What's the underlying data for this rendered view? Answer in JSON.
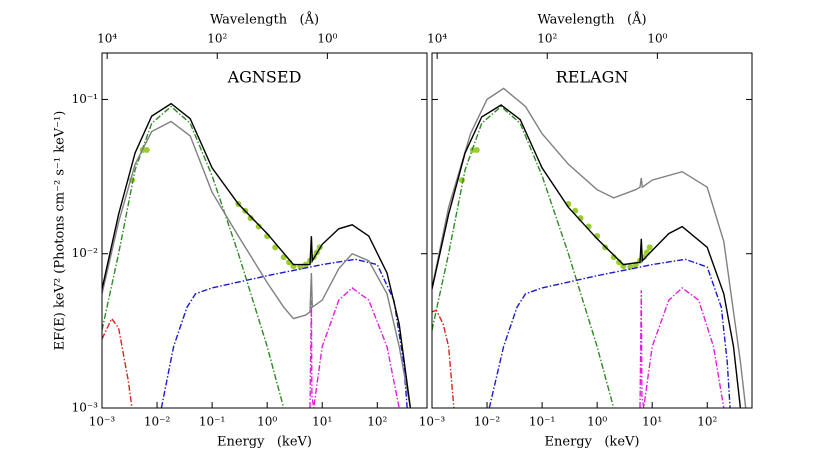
{
  "chart_data": [
    {
      "type": "line",
      "title": "AGNSED",
      "xlabel": "Energy   (keV)",
      "x2label": "Wavelength   (Å)",
      "ylabel": "EF(E)  keV² (Photons cm⁻² s⁻¹ keV⁻¹)",
      "xscale": "log",
      "yscale": "log",
      "xlim": [
        0.001,
        800
      ],
      "ylim": [
        0.001,
        0.2
      ],
      "x2lim": [
        12398,
        0.0155
      ],
      "xticks": [
        {
          "value": 0.001,
          "label": "10⁻³"
        },
        {
          "value": 0.01,
          "label": "10⁻²"
        },
        {
          "value": 0.1,
          "label": "10⁻¹"
        },
        {
          "value": 1,
          "label": "10⁰"
        },
        {
          "value": 10,
          "label": "10¹"
        },
        {
          "value": 100,
          "label": "10²"
        }
      ],
      "x2ticks": [
        {
          "value": 10000,
          "label": "10⁴"
        },
        {
          "value": 100,
          "label": "10²"
        },
        {
          "value": 1,
          "label": "10⁰"
        }
      ],
      "yticks": [
        {
          "value": 0.001,
          "label": "10⁻³"
        },
        {
          "value": 0.01,
          "label": "10⁻²"
        },
        {
          "value": 0.1,
          "label": "10⁻¹"
        }
      ],
      "series": [
        {
          "color": "#9acd32",
          "style": "points",
          "x": [
            0.0035,
            0.0055,
            0.0065,
            0.3,
            0.4,
            0.5,
            0.7,
            1,
            1.4,
            2,
            2.5,
            3,
            4,
            5,
            6,
            7,
            8,
            9
          ],
          "values": [
            0.03,
            0.047,
            0.047,
            0.021,
            0.019,
            0.017,
            0.015,
            0.013,
            0.011,
            0.0095,
            0.0088,
            0.0083,
            0.0082,
            0.0085,
            0.009,
            0.0095,
            0.0102,
            0.011
          ]
        },
        {
          "color": "#2e8b22",
          "style": "dashdot",
          "x": [
            0.001,
            0.002,
            0.004,
            0.008,
            0.018,
            0.04,
            0.1,
            0.3,
            1,
            2
          ],
          "values": [
            0.0032,
            0.01,
            0.035,
            0.07,
            0.09,
            0.07,
            0.032,
            0.01,
            0.0025,
            0.001
          ]
        },
        {
          "color": "#e02020",
          "style": "dashdot",
          "x": [
            0.001,
            0.0015,
            0.002,
            0.003,
            0.0035
          ],
          "values": [
            0.0028,
            0.0038,
            0.0033,
            0.0015,
            0.001
          ]
        },
        {
          "color": "#1a1acc",
          "style": "dashdot",
          "x": [
            0.012,
            0.02,
            0.035,
            0.05,
            0.1,
            1,
            10,
            40,
            100,
            200,
            300,
            350
          ],
          "values": [
            0.001,
            0.0025,
            0.0045,
            0.0055,
            0.006,
            0.0072,
            0.0085,
            0.0092,
            0.0085,
            0.005,
            0.002,
            0.001
          ]
        },
        {
          "color": "#e020e0",
          "style": "dashdot",
          "x": [
            6.0,
            6.35,
            6.5,
            7,
            10,
            20,
            35,
            70,
            150,
            250
          ],
          "values": [
            0.001,
            0.005,
            0.0012,
            0.001,
            0.0025,
            0.005,
            0.006,
            0.005,
            0.0025,
            0.001
          ]
        },
        {
          "color": "#808080",
          "style": "solid",
          "x": [
            0.001,
            0.002,
            0.004,
            0.008,
            0.018,
            0.04,
            0.1,
            0.3,
            1,
            2,
            3,
            5,
            6,
            6.35,
            6.6,
            10,
            20,
            35,
            70,
            150,
            250,
            400
          ],
          "values": [
            0.0055,
            0.016,
            0.038,
            0.062,
            0.072,
            0.058,
            0.025,
            0.013,
            0.0065,
            0.0045,
            0.0038,
            0.004,
            0.0042,
            0.0075,
            0.0045,
            0.005,
            0.008,
            0.01,
            0.009,
            0.0055,
            0.0025,
            0.001
          ]
        },
        {
          "color": "#000000",
          "style": "solid",
          "x": [
            0.001,
            0.002,
            0.004,
            0.008,
            0.018,
            0.04,
            0.1,
            0.3,
            1,
            3,
            6,
            6.35,
            6.6,
            10,
            20,
            35,
            70,
            150,
            250,
            400
          ],
          "values": [
            0.0059,
            0.018,
            0.045,
            0.078,
            0.094,
            0.075,
            0.036,
            0.021,
            0.0135,
            0.0085,
            0.0085,
            0.013,
            0.009,
            0.0115,
            0.0145,
            0.0154,
            0.013,
            0.0075,
            0.0035,
            0.001
          ]
        }
      ]
    },
    {
      "type": "line",
      "title": "RELAGN",
      "xlabel": "Energy   (keV)",
      "x2label": "Wavelength   (Å)",
      "xscale": "log",
      "yscale": "log",
      "xlim": [
        0.001,
        650
      ],
      "ylim": [
        0.001,
        0.2
      ],
      "x2lim": [
        12398,
        0.0191
      ],
      "xticks": [
        {
          "value": 0.001,
          "label": "10⁻³"
        },
        {
          "value": 0.01,
          "label": "10⁻²"
        },
        {
          "value": 0.1,
          "label": "10⁻¹"
        },
        {
          "value": 1,
          "label": "10⁰"
        },
        {
          "value": 10,
          "label": "10¹"
        },
        {
          "value": 100,
          "label": "10²"
        }
      ],
      "x2ticks": [
        {
          "value": 10000,
          "label": "10⁴"
        },
        {
          "value": 100,
          "label": "10²"
        },
        {
          "value": 1,
          "label": "10⁰"
        }
      ],
      "yticks": [
        0.001,
        0.01,
        0.1
      ],
      "series": [
        {
          "color": "#9acd32",
          "style": "points",
          "x": [
            0.0035,
            0.0055,
            0.0065,
            0.3,
            0.4,
            0.5,
            0.7,
            1,
            1.4,
            2,
            2.5,
            3,
            4,
            5,
            6,
            7,
            8,
            9
          ],
          "values": [
            0.03,
            0.047,
            0.047,
            0.021,
            0.019,
            0.017,
            0.015,
            0.013,
            0.011,
            0.0095,
            0.0088,
            0.0083,
            0.0082,
            0.0085,
            0.009,
            0.0095,
            0.0102,
            0.011
          ]
        },
        {
          "color": "#2e8b22",
          "style": "dashdot",
          "x": [
            0.001,
            0.002,
            0.004,
            0.008,
            0.018,
            0.04,
            0.1,
            0.3,
            1,
            2
          ],
          "values": [
            0.0032,
            0.01,
            0.035,
            0.07,
            0.09,
            0.07,
            0.032,
            0.01,
            0.0025,
            0.001
          ]
        },
        {
          "color": "#e02020",
          "style": "dashdot",
          "x": [
            0.001,
            0.0012,
            0.0016,
            0.002,
            0.0025
          ],
          "values": [
            0.0042,
            0.0043,
            0.0035,
            0.0025,
            0.001
          ]
        },
        {
          "color": "#1a1acc",
          "style": "dashdot",
          "x": [
            0.011,
            0.02,
            0.035,
            0.05,
            0.1,
            1,
            10,
            40,
            100,
            180,
            230,
            260
          ],
          "values": [
            0.001,
            0.0025,
            0.0045,
            0.0055,
            0.006,
            0.0072,
            0.0085,
            0.0092,
            0.0082,
            0.0045,
            0.002,
            0.001
          ]
        },
        {
          "color": "#e020e0",
          "style": "dashdot",
          "x": [
            6.0,
            6.35,
            6.5,
            7,
            10,
            20,
            35,
            70,
            130,
            200
          ],
          "values": [
            0.001,
            0.0058,
            0.0012,
            0.001,
            0.0025,
            0.005,
            0.006,
            0.005,
            0.0025,
            0.001
          ]
        },
        {
          "color": "#808080",
          "style": "solid",
          "x": [
            0.001,
            0.002,
            0.005,
            0.01,
            0.02,
            0.05,
            0.1,
            0.3,
            1,
            2,
            5,
            6,
            6.35,
            6.6,
            10,
            35,
            100,
            200,
            400,
            500
          ],
          "values": [
            0.006,
            0.02,
            0.06,
            0.1,
            0.118,
            0.09,
            0.06,
            0.038,
            0.026,
            0.023,
            0.026,
            0.027,
            0.031,
            0.027,
            0.03,
            0.034,
            0.027,
            0.012,
            0.002,
            0.001
          ]
        },
        {
          "color": "#000000",
          "style": "solid",
          "x": [
            0.001,
            0.002,
            0.004,
            0.008,
            0.018,
            0.04,
            0.1,
            0.3,
            1,
            3,
            6,
            6.35,
            6.6,
            10,
            20,
            35,
            100,
            200,
            300,
            400
          ],
          "values": [
            0.0059,
            0.018,
            0.045,
            0.077,
            0.092,
            0.074,
            0.036,
            0.02,
            0.0125,
            0.0085,
            0.0088,
            0.0125,
            0.009,
            0.0105,
            0.0135,
            0.015,
            0.011,
            0.0055,
            0.0025,
            0.001
          ]
        }
      ]
    }
  ]
}
